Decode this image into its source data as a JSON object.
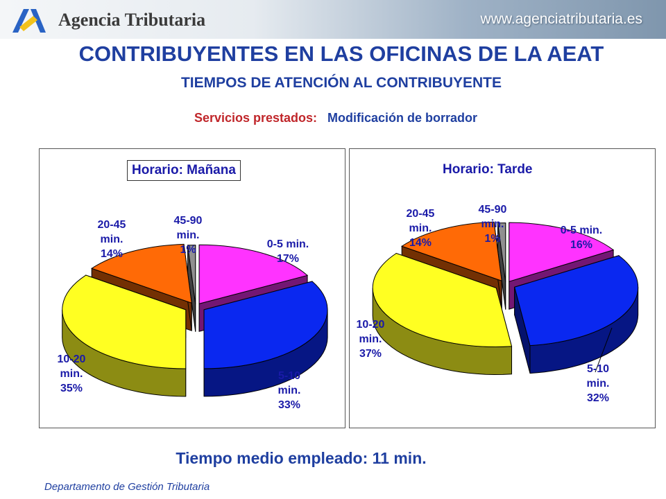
{
  "header": {
    "brand": "Agencia Tributaria",
    "website": "www.agenciatributaria.es",
    "logo_icon": "aeat-logo-icon"
  },
  "title": "CONTRIBUYENTES EN LAS OFICINAS DE LA AEAT",
  "subtitle": "TIEMPOS DE ATENCIÓN AL CONTRIBUYENTE",
  "services": {
    "label": "Servicios prestados:",
    "value": "Modificación de borrador"
  },
  "chart_data": [
    {
      "type": "pie",
      "title": "Horario: Mañana",
      "categories": [
        "0-5 min.",
        "5-10 min.",
        "10-20 min.",
        "20-45 min.",
        "45-90 min."
      ],
      "values": [
        17,
        33,
        35,
        14,
        1
      ],
      "value_labels": [
        "17%",
        "33%",
        "35%",
        "14%",
        "1%"
      ],
      "label_lines": [
        [
          "0-5 min.",
          "17%"
        ],
        [
          "5-10",
          "min.",
          "33%"
        ],
        [
          "10-20",
          "min.",
          "35%"
        ],
        [
          "20-45",
          "min.",
          "14%"
        ],
        [
          "45-90",
          "min.",
          "1%"
        ]
      ],
      "colors": [
        "#ff33ff",
        "#0a28f0",
        "#ffff22",
        "#ff6a06",
        "#909090"
      ],
      "style": "3d-exploded-pie"
    },
    {
      "type": "pie",
      "title": "Horario: Tarde",
      "categories": [
        "0-5 min.",
        "5-10 min.",
        "10-20 min.",
        "20-45 min.",
        "45-90 min."
      ],
      "values": [
        16,
        32,
        37,
        14,
        1
      ],
      "value_labels": [
        "16%",
        "32%",
        "37%",
        "14%",
        "1%"
      ],
      "label_lines": [
        [
          "0-5 min.",
          "16%"
        ],
        [
          "5-10",
          "min.",
          "32%"
        ],
        [
          "10-20",
          "min.",
          "37%"
        ],
        [
          "20-45",
          "min.",
          "14%"
        ],
        [
          "45-90",
          "min.",
          "1%"
        ]
      ],
      "colors": [
        "#ff33ff",
        "#0a28f0",
        "#ffff22",
        "#ff6a06",
        "#909090"
      ],
      "style": "3d-exploded-pie"
    }
  ],
  "footer": {
    "average_time": "Tiempo medio empleado: 11 min.",
    "department": "Departamento de Gestión Tributaria"
  }
}
